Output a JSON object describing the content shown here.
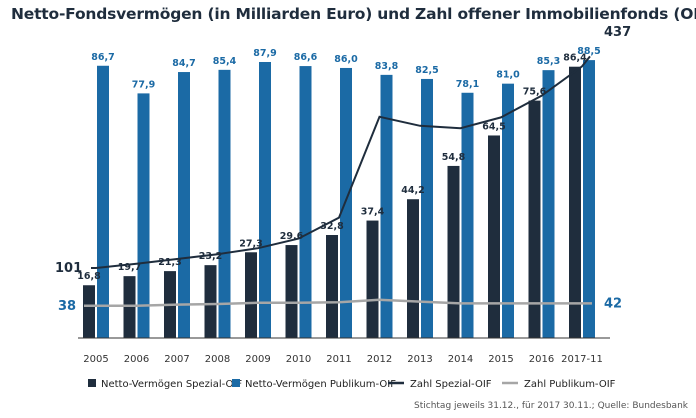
{
  "title": "Netto-Fondsvermögen (in Milliarden Euro) und Zahl offener Immobilienfonds (OIF)",
  "source": "Stichtag jeweils 31.12., für 2017 30.11.; Quelle: Bundesbank",
  "colors": {
    "spezial_bar": "#1f2d3d",
    "publikum_bar": "#1b6aa5",
    "spezial_line": "#1f2d3d",
    "publikum_line": "#a6a6a6",
    "bar_label_spezial": "#1f2d3d",
    "bar_label_publikum": "#1b6aa5"
  },
  "chart_data": {
    "type": "bar",
    "categories": [
      "2005",
      "2006",
      "2007",
      "2008",
      "2009",
      "2010",
      "2011",
      "2012",
      "2013",
      "2014",
      "2015",
      "2016",
      "2017-11"
    ],
    "series": [
      {
        "name": "Netto-Vermögen Spezial-OIF",
        "kind": "bar",
        "values": [
          16.8,
          19.7,
          21.3,
          23.2,
          27.3,
          29.6,
          32.8,
          37.4,
          44.2,
          54.8,
          64.5,
          75.6,
          86.4
        ],
        "labels": [
          "16,8",
          "19,7",
          "21,3",
          "23,2",
          "27,3",
          "29,6",
          "32,8",
          "37,4",
          "44,2",
          "54,8",
          "64,5",
          "75,6",
          "86,4"
        ]
      },
      {
        "name": "Netto-Vermögen Publikum-OIF",
        "kind": "bar",
        "values": [
          86.7,
          77.9,
          84.7,
          85.4,
          87.9,
          86.6,
          86.0,
          83.8,
          82.5,
          78.1,
          81.0,
          85.3,
          88.5
        ],
        "labels": [
          "86,7",
          "77,9",
          "84,7",
          "85,4",
          "87,9",
          "86,6",
          "86,0",
          "83,8",
          "82,5",
          "78,1",
          "81,0",
          "85,3",
          "88,5"
        ]
      },
      {
        "name": "Zahl Spezial-OIF",
        "kind": "line",
        "values": [
          101,
          108,
          116,
          124,
          134,
          150,
          185,
          353,
          338,
          334,
          352,
          388,
          437
        ]
      },
      {
        "name": "Zahl Publikum-OIF",
        "kind": "line",
        "values": [
          38,
          38,
          40,
          41,
          43,
          43,
          44,
          48,
          45,
          42,
          42,
          42,
          42
        ]
      }
    ],
    "line_start_labels": {
      "spezial": "101",
      "publikum": "38"
    },
    "line_end_labels": {
      "spezial": "437",
      "publikum": "42"
    },
    "legend": [
      "Netto-Vermögen Spezial-OIF",
      "Netto-Vermögen Publikum-OIF",
      "Zahl Spezial-OIF",
      "Zahl Publikum-OIF"
    ]
  }
}
